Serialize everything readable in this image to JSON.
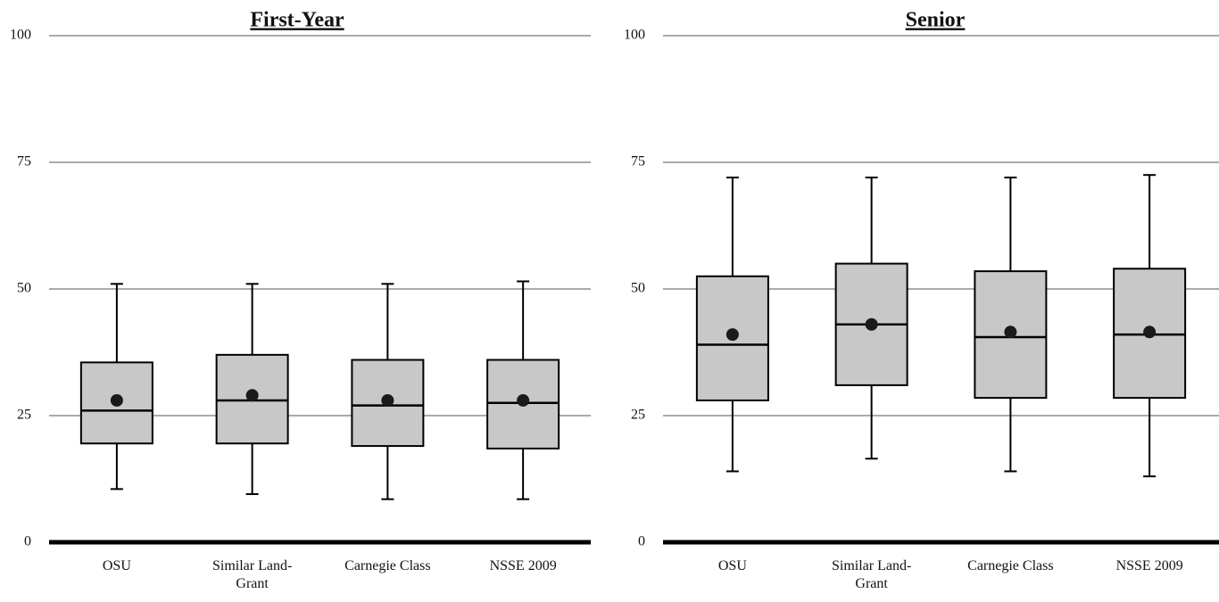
{
  "chart_data": [
    {
      "type": "box",
      "title": "First-Year",
      "categories": [
        "OSU",
        "Similar Land-Grant",
        "Carnegie Class",
        "NSSE 2009"
      ],
      "min": [
        10.5,
        9.5,
        8.5,
        8.5
      ],
      "q1": [
        19.5,
        19.5,
        19,
        18.5
      ],
      "median": [
        26,
        28,
        27,
        27.5
      ],
      "q3": [
        35.5,
        37,
        36,
        36
      ],
      "max": [
        51,
        51,
        51,
        51.5
      ],
      "mean": [
        28,
        29,
        28,
        28
      ],
      "color": "#c8c8c8",
      "ylim": [
        0,
        100
      ],
      "yticks": [
        0,
        25,
        50,
        75,
        100
      ],
      "grid": true
    },
    {
      "type": "box",
      "title": "Senior",
      "categories": [
        "OSU",
        "Similar Land-Grant",
        "Carnegie Class",
        "NSSE 2009"
      ],
      "min": [
        14,
        16.5,
        14,
        13
      ],
      "q1": [
        28,
        31,
        28.5,
        28.5
      ],
      "median": [
        39,
        43,
        40.5,
        41
      ],
      "q3": [
        52.5,
        55,
        53.5,
        54
      ],
      "max": [
        72,
        72,
        72,
        72.5
      ],
      "mean": [
        41,
        43,
        41.5,
        41.5
      ],
      "color": "#c8c8c8",
      "ylim": [
        0,
        100
      ],
      "yticks": [
        0,
        25,
        50,
        75,
        100
      ],
      "grid": true
    }
  ]
}
